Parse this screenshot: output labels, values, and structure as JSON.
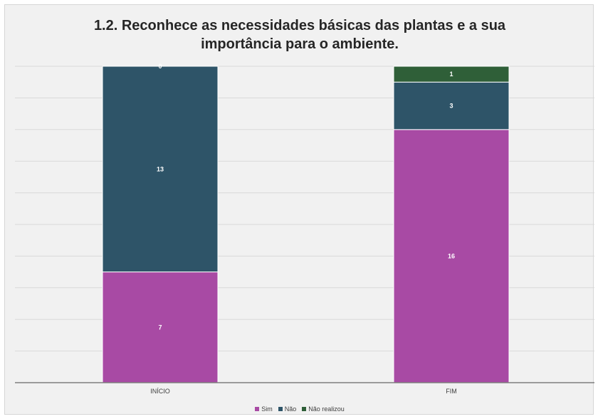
{
  "chart_data": {
    "type": "bar",
    "stacked": true,
    "title": "1.2. Reconhece as necessidades básicas das plantas e a sua\nimportância para o ambiente.",
    "categories": [
      "INÍCIO",
      "FIM"
    ],
    "series": [
      {
        "name": "Sim",
        "color": "#a84aa4",
        "values": [
          7,
          16
        ]
      },
      {
        "name": "Não",
        "color": "#2e5468",
        "values": [
          13,
          3
        ]
      },
      {
        "name": "Não realizou",
        "color": "#2f5f38",
        "values": [
          0,
          1
        ]
      }
    ],
    "data_labels": [
      [
        "7",
        "16"
      ],
      [
        "13",
        "3"
      ],
      [
        "0",
        "1"
      ]
    ],
    "ylim": [
      0,
      20
    ],
    "grid": true,
    "legend_position": "bottom"
  }
}
